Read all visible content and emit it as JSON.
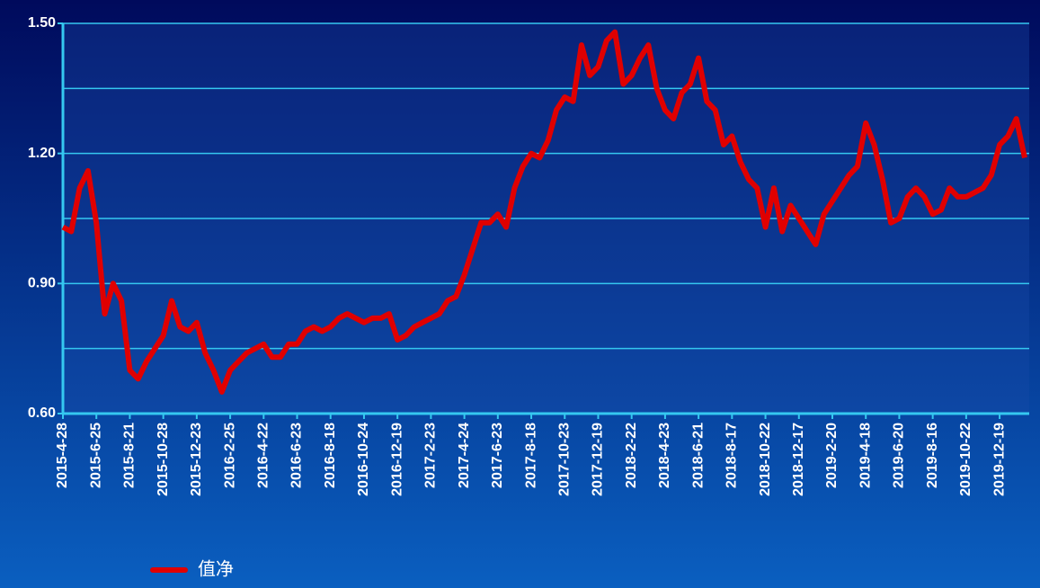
{
  "chart_data": {
    "type": "line",
    "categories": [
      "2015-4-28",
      null,
      null,
      null,
      "2015-6-25",
      null,
      null,
      null,
      "2015-8-21",
      null,
      null,
      null,
      "2015-10-28",
      null,
      null,
      null,
      "2015-12-23",
      null,
      null,
      null,
      "2016-2-25",
      null,
      null,
      null,
      "2016-4-22",
      null,
      null,
      null,
      "2016-6-23",
      null,
      null,
      null,
      "2016-8-18",
      null,
      null,
      null,
      "2016-10-24",
      null,
      null,
      null,
      "2016-12-19",
      null,
      null,
      null,
      "2017-2-23",
      null,
      null,
      null,
      "2017-4-24",
      null,
      null,
      null,
      "2017-6-23",
      null,
      null,
      null,
      "2017-8-18",
      null,
      null,
      null,
      "2017-10-23",
      null,
      null,
      null,
      "2017-12-19",
      null,
      null,
      null,
      "2018-2-22",
      null,
      null,
      null,
      "2018-4-23",
      null,
      null,
      null,
      "2018-6-21",
      null,
      null,
      null,
      "2018-8-17",
      null,
      null,
      null,
      "2018-10-22",
      null,
      null,
      null,
      "2018-12-17",
      null,
      null,
      null,
      "2019-2-20",
      null,
      null,
      null,
      "2019-4-18",
      null,
      null,
      null,
      "2019-6-20",
      null,
      null,
      null,
      "2019-8-16",
      null,
      null,
      null,
      "2019-10-22",
      null,
      null,
      null,
      "2019-12-19",
      null,
      null,
      null
    ],
    "series": [
      {
        "name": "值净",
        "color": "#e00000",
        "values": [
          1.03,
          1.02,
          1.12,
          1.16,
          1.04,
          0.83,
          0.9,
          0.86,
          0.7,
          0.68,
          0.72,
          0.75,
          0.78,
          0.86,
          0.8,
          0.79,
          0.81,
          0.74,
          0.7,
          0.65,
          0.7,
          0.72,
          0.74,
          0.75,
          0.76,
          0.73,
          0.73,
          0.76,
          0.76,
          0.79,
          0.8,
          0.79,
          0.8,
          0.82,
          0.83,
          0.82,
          0.81,
          0.82,
          0.82,
          0.83,
          0.77,
          0.78,
          0.8,
          0.81,
          0.82,
          0.83,
          0.86,
          0.87,
          0.92,
          0.98,
          1.04,
          1.04,
          1.06,
          1.03,
          1.12,
          1.17,
          1.2,
          1.19,
          1.23,
          1.3,
          1.33,
          1.32,
          1.45,
          1.38,
          1.4,
          1.46,
          1.48,
          1.36,
          1.38,
          1.42,
          1.45,
          1.35,
          1.3,
          1.28,
          1.34,
          1.36,
          1.42,
          1.32,
          1.3,
          1.22,
          1.24,
          1.18,
          1.14,
          1.12,
          1.03,
          1.12,
          1.02,
          1.08,
          1.05,
          1.02,
          0.99,
          1.06,
          1.09,
          1.12,
          1.15,
          1.17,
          1.27,
          1.22,
          1.14,
          1.04,
          1.05,
          1.1,
          1.12,
          1.1,
          1.06,
          1.07,
          1.12,
          1.1,
          1.1,
          1.11,
          1.12,
          1.15,
          1.22,
          1.24,
          1.28,
          1.19
        ]
      }
    ],
    "ylim": [
      0.6,
      1.5
    ],
    "yticks": [
      {
        "value": 0.6,
        "label": "0.60"
      },
      {
        "value": 0.9,
        "label": "0.90"
      },
      {
        "value": 1.2,
        "label": "1.20"
      },
      {
        "value": 1.5,
        "label": "1.50"
      }
    ],
    "minor_yticks": [
      0.75,
      1.05,
      1.35
    ],
    "grid": true
  }
}
